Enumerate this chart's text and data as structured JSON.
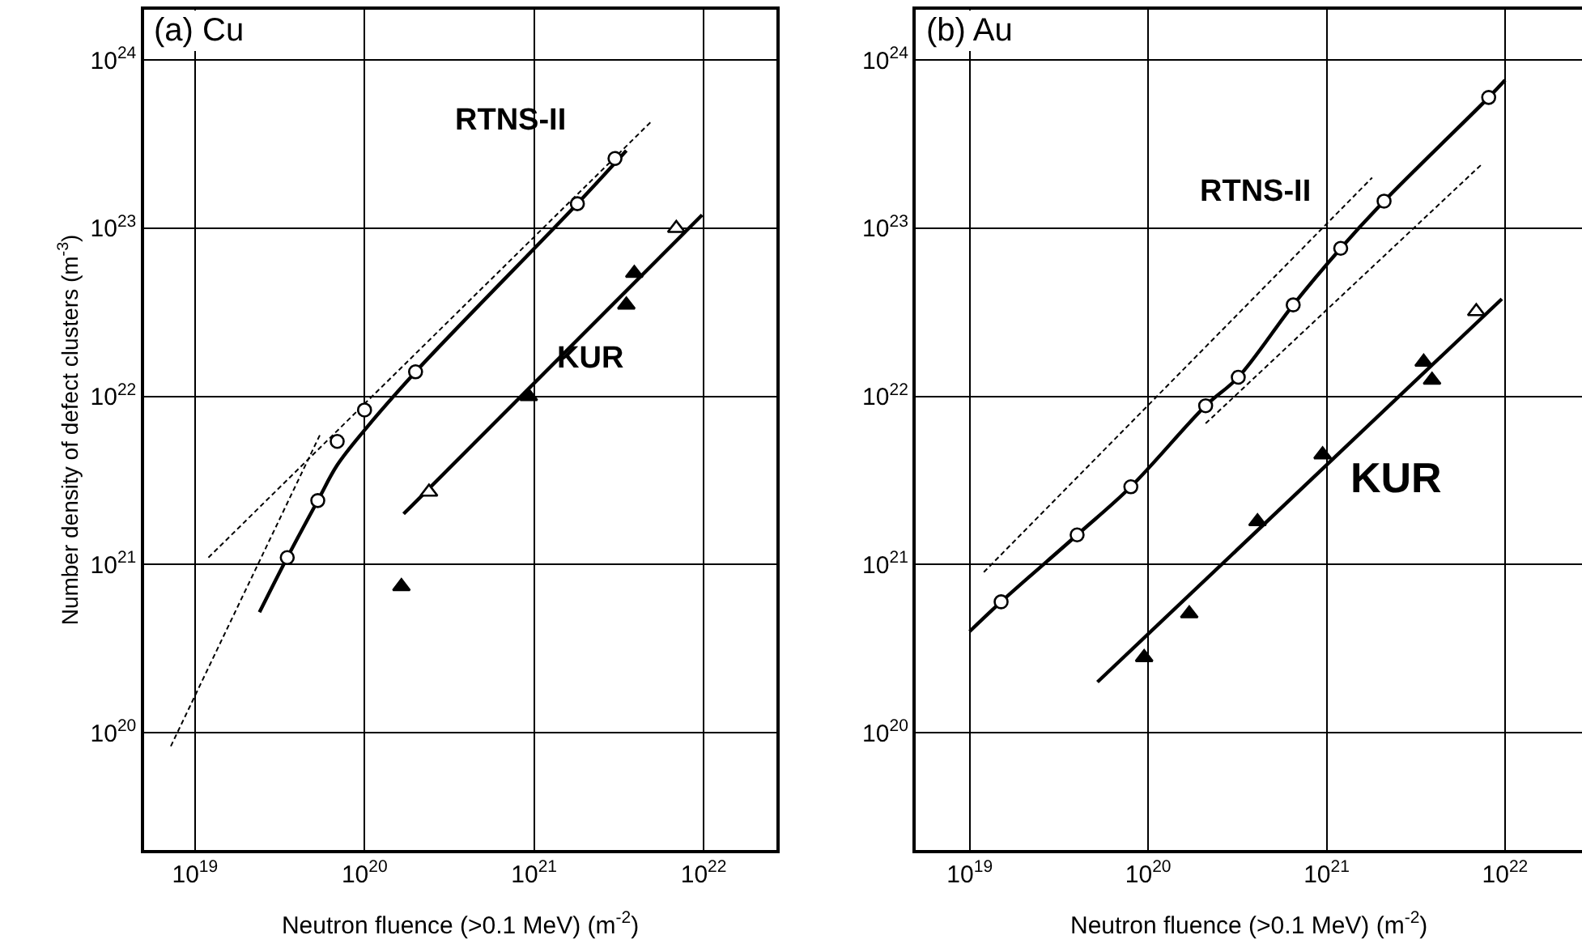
{
  "chart_data": [
    {
      "type": "scatter",
      "title": "(a) Cu",
      "xlabel": "Neutron fluence (>0.1 MeV) (m$^{-2}$)",
      "ylabel": "Number density of defect clusters (m$^{-3}$)",
      "log": "xy",
      "grid": true,
      "xlim": [
        5e+18,
        2.7e+22
      ],
      "ylim": [
        2e+19,
        2e+24
      ],
      "xticks": [
        {
          "value": 1e+19,
          "label": "10$^{19}$"
        },
        {
          "value": 1e+20,
          "label": "10$^{20}$"
        },
        {
          "value": 1e+21,
          "label": "10$^{21}$"
        },
        {
          "value": 1e+22,
          "label": "10$^{22}$"
        }
      ],
      "yticks": [
        {
          "value": 1e+20,
          "label": "10$^{20}$"
        },
        {
          "value": 1e+21,
          "label": "10$^{21}$"
        },
        {
          "value": 1e+22,
          "label": "10$^{22}$"
        },
        {
          "value": 1e+23,
          "label": "10$^{23}$"
        },
        {
          "value": 1e+24,
          "label": "10$^{24}$"
        }
      ],
      "annotations": [
        "RTNS-II",
        "KUR"
      ],
      "series": [
        {
          "type": "line",
          "marker": "none",
          "line_style": "dashed",
          "color": "#000000",
          "x": [
            7.2e+18,
            5.5e+19
          ],
          "values": [
            8.3e+19,
            6e+21
          ]
        },
        {
          "type": "line",
          "marker": "none",
          "line_style": "dashed",
          "color": "#000000",
          "x": [
            1.2e+19,
            4.9e+21
          ],
          "values": [
            1.1e+21,
            4.3e+23
          ]
        },
        {
          "type": "line",
          "marker": "none",
          "line_style": "solid",
          "color": "#000000",
          "x": [
            2.4e+19,
            3.5e+19,
            5.3e+19,
            6.9e+19,
            1e+20,
            2e+20,
            1.8e+21,
            3.5e+21
          ],
          "values": [
            5.2e+20,
            1.1e+21,
            2.4e+21,
            3.9e+21,
            6.3e+21,
            1.4e+22,
            1.4e+23,
            2.9e+23
          ]
        },
        {
          "marker": "circle",
          "color": "#ffffff",
          "x": [
            3.5e+19,
            5.3e+19,
            6.9e+19,
            1e+20,
            2e+20,
            1.8e+21,
            3e+21
          ],
          "values": [
            1.1e+21,
            2.4e+21,
            5.4e+21,
            8.3e+21,
            1.4e+22,
            1.4e+23,
            2.6e+23
          ]
        },
        {
          "type": "line",
          "marker": "none",
          "line_style": "solid",
          "color": "#000000",
          "x": [
            1.7e+20,
            9.8e+21
          ],
          "values": [
            2e+21,
            1.2e+23
          ]
        },
        {
          "marker": "triangle",
          "color": "#000000",
          "x": [
            1.65e+20,
            9.3e+20,
            3.5e+21,
            3.9e+21
          ],
          "values": [
            7.4e+20,
            1e+22,
            3.5e+22,
            5.4e+22
          ]
        },
        {
          "marker": "triangle",
          "color": "#ffffff",
          "x": [
            2.4e+20,
            6.9e+21
          ],
          "values": [
            2.7e+21,
            1e+23
          ]
        }
      ]
    },
    {
      "type": "scatter",
      "title": "(b) Au",
      "xlabel": "Neutron fluence (>0.1 MeV) (m$^{-2}$)",
      "log": "xy",
      "grid": true,
      "xlim": [
        5e+18,
        2.7e+22
      ],
      "ylim": [
        2e+19,
        2e+24
      ],
      "xticks": [
        {
          "value": 1e+19,
          "label": "10$^{19}$"
        },
        {
          "value": 1e+20,
          "label": "10$^{20}$"
        },
        {
          "value": 1e+21,
          "label": "10$^{21}$"
        },
        {
          "value": 1e+22,
          "label": "10$^{22}$"
        }
      ],
      "yticks": [
        {
          "value": 1e+20,
          "label": "10$^{20}$"
        },
        {
          "value": 1e+21,
          "label": "10$^{21}$"
        },
        {
          "value": 1e+22,
          "label": "10$^{22}$"
        },
        {
          "value": 1e+23,
          "label": "10$^{23}$"
        },
        {
          "value": 1e+24,
          "label": "10$^{24}$"
        }
      ],
      "annotations": [
        "RTNS-II",
        "KUR"
      ],
      "series": [
        {
          "type": "line",
          "marker": "none",
          "line_style": "dashed",
          "color": "#000000",
          "x": [
            1.2e+19,
            1.8e+21
          ],
          "values": [
            9e+20,
            2e+23
          ]
        },
        {
          "type": "line",
          "marker": "none",
          "line_style": "dashed",
          "color": "#000000",
          "x": [
            2.1e+20,
            7.4e+21
          ],
          "values": [
            6.9e+21,
            2.4e+23
          ]
        },
        {
          "type": "line",
          "marker": "none",
          "line_style": "solid",
          "color": "#000000",
          "x": [
            1e+19,
            1.5e+19,
            4e+19,
            8e+19,
            2.1e+20,
            3.2e+20,
            6.5e+20,
            1.2e+21,
            2.1e+21,
            8.1e+21,
            1e+22
          ],
          "values": [
            4e+20,
            6e+20,
            1.5e+21,
            2.9e+21,
            8.8e+21,
            1.3e+22,
            3.5e+22,
            7.6e+22,
            1.45e+23,
            6e+23,
            7.6e+23
          ]
        },
        {
          "marker": "circle",
          "color": "#ffffff",
          "x": [
            1.5e+19,
            4e+19,
            8e+19,
            2.1e+20,
            3.2e+20,
            6.5e+20,
            1.2e+21,
            2.1e+21,
            8.1e+21
          ],
          "values": [
            6e+20,
            1.5e+21,
            2.9e+21,
            8.8e+21,
            1.3e+22,
            3.5e+22,
            7.6e+22,
            1.45e+23,
            6e+23
          ]
        },
        {
          "type": "line",
          "marker": "none",
          "line_style": "solid",
          "color": "#000000",
          "x": [
            5.2e+19,
            9.6e+21
          ],
          "values": [
            2e+20,
            3.8e+22
          ]
        },
        {
          "marker": "triangle",
          "color": "#000000",
          "x": [
            9.5e+19,
            1.7e+20,
            4.1e+20,
            9.5e+20,
            3.5e+21,
            3.9e+21
          ],
          "values": [
            2.8e+20,
            5.1e+20,
            1.8e+21,
            4.5e+21,
            1.6e+22,
            1.25e+22
          ]
        },
        {
          "marker": "triangle",
          "color": "#ffffff",
          "x": [
            6.9e+21
          ],
          "values": [
            3.2e+22
          ]
        }
      ]
    }
  ]
}
